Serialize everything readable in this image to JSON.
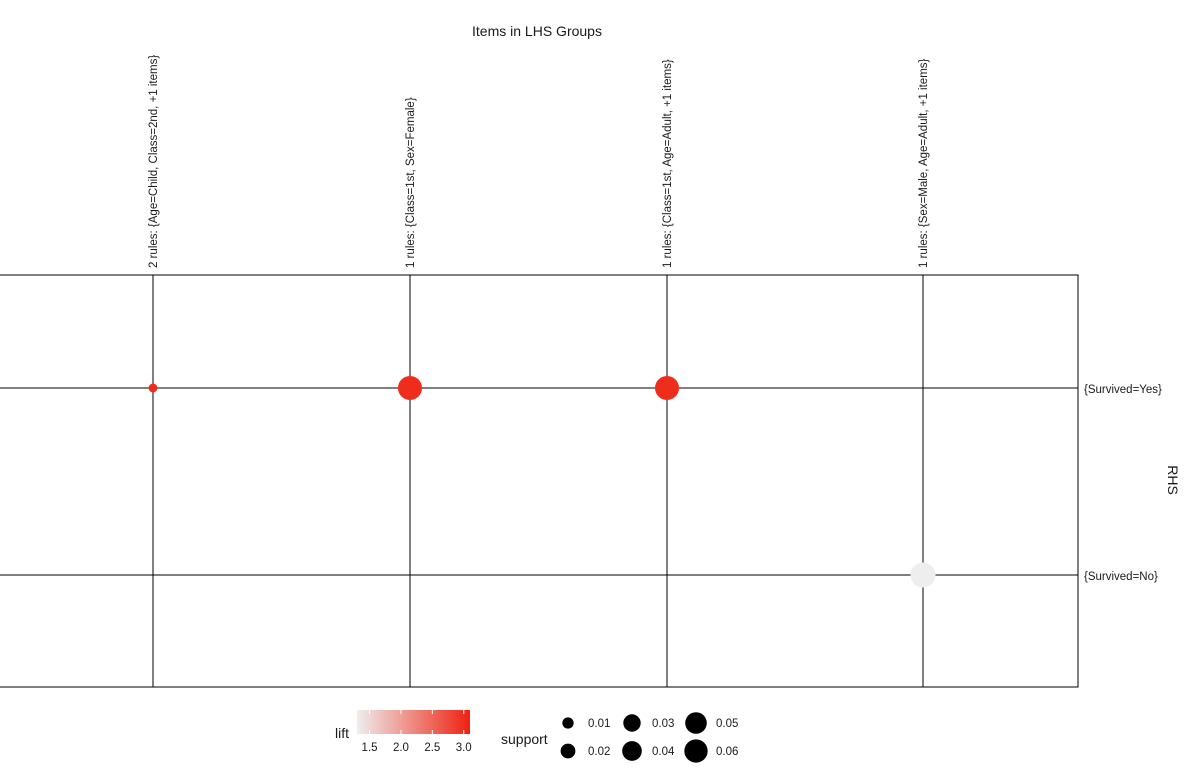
{
  "chart_data": {
    "type": "scatter",
    "title": "Items in LHS Groups",
    "xlabel": "",
    "ylabel": "RHS",
    "x_categories": [
      "2 rules: {Age=Child, Class=2nd, +1 items}",
      "1 rules: {Class=1st, Sex=Female}",
      "1 rules: {Class=1st, Age=Adult, +1 items}",
      "1 rules: {Sex=Male, Age=Adult, +1 items}"
    ],
    "y_categories": [
      "{Survived=Yes}",
      "{Survived=No}"
    ],
    "grid": true,
    "legend_position": "bottom",
    "points": [
      {
        "x": "2 rules: {Age=Child, Class=2nd, +1 items}",
        "y": "{Survived=Yes}",
        "support": 0.005,
        "lift": 3.0
      },
      {
        "x": "1 rules: {Class=1st, Sex=Female}",
        "y": "{Survived=Yes}",
        "support": 0.064,
        "lift": 3.0
      },
      {
        "x": "1 rules: {Class=1st, Age=Adult, +1 items}",
        "y": "{Survived=Yes}",
        "support": 0.064,
        "lift": 3.0
      },
      {
        "x": "1 rules: {Sex=Male, Age=Adult, +1 items}",
        "y": "{Survived=No}",
        "support": 0.07,
        "lift": 1.3
      }
    ],
    "legend": {
      "lift": {
        "title": "lift",
        "range": [
          1.3,
          3.1
        ],
        "ticks": [
          "1.5",
          "2.0",
          "2.5",
          "3.0"
        ],
        "tick_values": [
          1.5,
          2.0,
          2.5,
          3.0
        ],
        "colors": [
          "#eeeeee",
          "#ee2211"
        ]
      },
      "support": {
        "title": "support",
        "ticks": [
          "0.01",
          "0.02",
          "0.03",
          "0.04",
          "0.05",
          "0.06"
        ],
        "tick_values": [
          0.01,
          0.02,
          0.03,
          0.04,
          0.05,
          0.06
        ]
      }
    }
  }
}
